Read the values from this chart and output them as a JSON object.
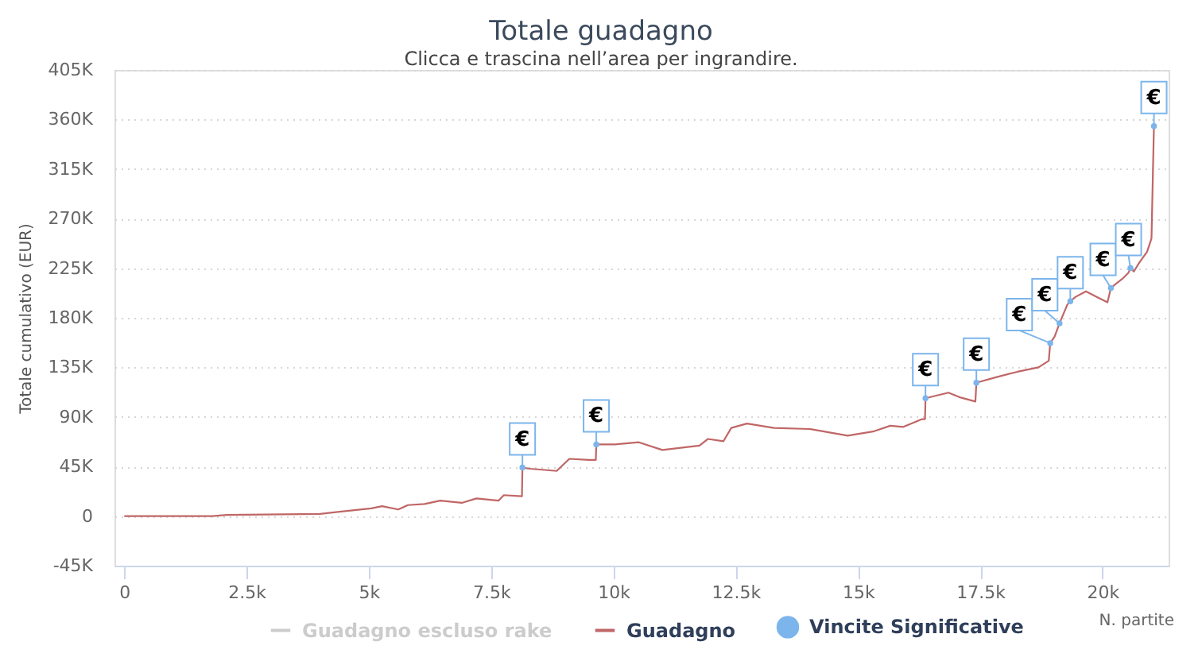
{
  "chart_data": {
    "type": "line",
    "title": "Totale guadagno",
    "subtitle": "Clicca e trascina nell’area per ingrandire.",
    "xlabel": "N. partite",
    "ylabel": "Totale cumulativo (EUR)",
    "xlim": [
      -200,
      21350
    ],
    "xticks": [
      0,
      {
        "value": 2500,
        "label": "2.5k"
      },
      {
        "value": 5000,
        "label": "5k"
      },
      {
        "value": 7500,
        "label": "7.5k"
      },
      {
        "value": 10000,
        "label": "10k"
      },
      {
        "value": 12500,
        "label": "12.5k"
      },
      {
        "value": 15000,
        "label": "15k"
      },
      {
        "value": 17500,
        "label": "17.5k"
      },
      {
        "value": 20000,
        "label": "20k"
      }
    ],
    "ylim": [
      -45000,
      405000
    ],
    "yticks": [
      {
        "value": -45000,
        "label": "-45K"
      },
      0,
      {
        "value": 45000,
        "label": "45K"
      },
      {
        "value": 90000,
        "label": "90K"
      },
      {
        "value": 135000,
        "label": "135K"
      },
      {
        "value": 180000,
        "label": "180K"
      },
      {
        "value": 225000,
        "label": "225K"
      },
      {
        "value": 270000,
        "label": "270K"
      },
      {
        "value": 315000,
        "label": "315K"
      },
      {
        "value": 360000,
        "label": "360K"
      },
      {
        "value": 405000,
        "label": "405K"
      }
    ],
    "grid": "y",
    "legend": "bottom",
    "series": [
      {
        "name": "Guadagno escluso rake",
        "color": "#cccccc"
      },
      {
        "name": "Guadagno",
        "color": "#c06666",
        "x": [
          0,
          1800,
          2100,
          4000,
          4400,
          5050,
          5270,
          5600,
          5800,
          6140,
          6460,
          6900,
          7200,
          7650,
          7760,
          8130,
          8140,
          8300,
          8840,
          9100,
          9490,
          9640,
          9650,
          10030,
          10520,
          11000,
          11760,
          11930,
          12250,
          12410,
          12730,
          13280,
          14030,
          14790,
          15330,
          15660,
          15930,
          16310,
          16370,
          16380,
          16850,
          17070,
          17400,
          17420,
          17820,
          18260,
          18690,
          18900,
          18930,
          19020,
          19120,
          19280,
          19340,
          19450,
          19660,
          19880,
          20100,
          20170,
          20250,
          20420,
          20530,
          20570,
          20640,
          20750,
          20910,
          21000,
          21050
        ],
        "values": [
          0,
          0,
          1000,
          2000,
          4000,
          7000,
          9000,
          6000,
          10000,
          11000,
          14000,
          12000,
          16000,
          14000,
          19000,
          18000,
          44000,
          43000,
          41000,
          52000,
          51000,
          51000,
          65000,
          65000,
          67000,
          60000,
          64000,
          70000,
          68000,
          80000,
          84000,
          80000,
          79000,
          73000,
          77000,
          82000,
          81000,
          88000,
          88000,
          107000,
          112000,
          108000,
          104000,
          121000,
          126000,
          131000,
          135000,
          141000,
          157000,
          163000,
          175000,
          192000,
          195000,
          199000,
          204000,
          199000,
          194000,
          207000,
          210000,
          216000,
          221000,
          225000,
          222000,
          230000,
          240000,
          252000,
          354000
        ]
      },
      {
        "name": "Vincite Significative",
        "type": "scatter",
        "color": "#7cb5ec",
        "x": [
          8140,
          9650,
          16380,
          17420,
          18930,
          19120,
          19340,
          20170,
          20570,
          21050
        ],
        "values": [
          44000,
          65000,
          107000,
          121000,
          157000,
          175000,
          195000,
          207000,
          225000,
          354000
        ],
        "value_labels": [
          "€",
          "€",
          "€",
          "€",
          "€",
          "€",
          "€",
          "€",
          "€",
          "€"
        ]
      }
    ]
  }
}
